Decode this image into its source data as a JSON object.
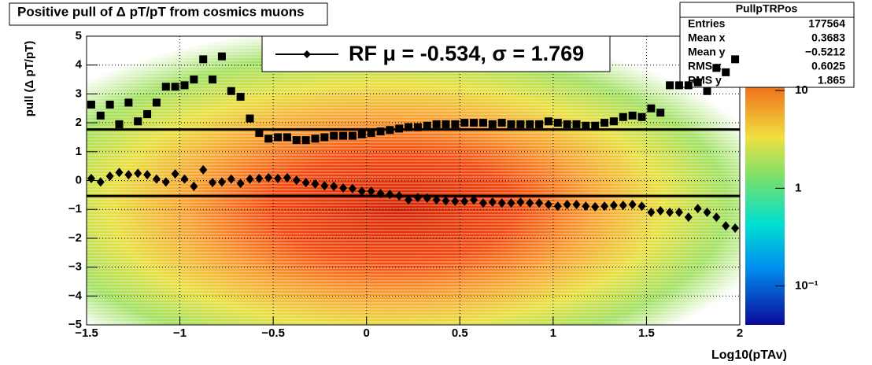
{
  "chart_data": {
    "type": "scatter",
    "title": "Positive pull of Δ pT/pT from cosmics muons",
    "x_label": "Log10(pTAv)",
    "y_label": "pull (Δ pT/pT)",
    "xlim": [
      -1.5,
      2
    ],
    "ylim": [
      -5,
      5
    ],
    "xticks": [
      {
        "value": -1.5,
        "label": "−1.5"
      },
      {
        "value": -1,
        "label": "−1"
      },
      {
        "value": -0.5,
        "label": "−0.5"
      },
      0,
      0.5,
      1,
      1.5,
      2
    ],
    "yticks": [
      {
        "value": -5,
        "label": "−5"
      },
      {
        "value": -4,
        "label": "−4"
      },
      {
        "value": -3,
        "label": "−3"
      },
      {
        "value": -2,
        "label": "−2"
      },
      {
        "value": -1,
        "label": "−1"
      },
      0,
      1,
      2,
      3,
      4,
      5
    ],
    "grid": true,
    "zlim": [
      0.04,
      36
    ],
    "zticks": [
      {
        "value": 0.1,
        "label": "10⁻¹"
      },
      1,
      10
    ],
    "log_z": true,
    "fit": {
      "legend": "RF μ = -0.534, σ =   1.769",
      "mean": -0.534,
      "sigma": 1.769
    },
    "stats": {
      "title": "PullpTRPos",
      "rows": [
        [
          "Entries",
          "177564"
        ],
        [
          "Mean x",
          "0.3683"
        ],
        [
          "Mean y",
          "−0.5212"
        ],
        [
          "RMS x",
          "0.6025"
        ],
        [
          "RMS y",
          "1.865"
        ]
      ]
    },
    "x": [
      -1.475,
      -1.425,
      -1.375,
      -1.325,
      -1.275,
      -1.225,
      -1.175,
      -1.125,
      -1.075,
      -1.025,
      -0.975,
      -0.925,
      -0.875,
      -0.825,
      -0.775,
      -0.725,
      -0.675,
      -0.625,
      -0.575,
      -0.525,
      -0.475,
      -0.425,
      -0.375,
      -0.325,
      -0.275,
      -0.225,
      -0.175,
      -0.125,
      -0.075,
      -0.025,
      0.025,
      0.075,
      0.125,
      0.175,
      0.225,
      0.275,
      0.325,
      0.375,
      0.425,
      0.475,
      0.525,
      0.575,
      0.625,
      0.675,
      0.725,
      0.775,
      0.825,
      0.875,
      0.925,
      0.975,
      1.025,
      1.075,
      1.125,
      1.175,
      1.225,
      1.275,
      1.325,
      1.375,
      1.425,
      1.475,
      1.525,
      1.575,
      1.625,
      1.675,
      1.725,
      1.775,
      1.825,
      1.875,
      1.925,
      1.975
    ],
    "series": [
      {
        "marker": "square",
        "color": "#000000",
        "values": [
          2.63,
          2.25,
          2.63,
          1.95,
          2.7,
          2.05,
          2.3,
          2.7,
          3.25,
          3.25,
          3.3,
          3.5,
          4.2,
          3.5,
          4.3,
          3.1,
          2.9,
          2.15,
          1.65,
          1.45,
          1.5,
          1.5,
          1.4,
          1.4,
          1.45,
          1.5,
          1.55,
          1.55,
          1.55,
          1.6,
          1.65,
          1.7,
          1.75,
          1.8,
          1.85,
          1.85,
          1.9,
          1.95,
          1.95,
          1.95,
          2.0,
          2.0,
          2.0,
          1.95,
          2.0,
          1.95,
          1.95,
          1.95,
          1.95,
          2.05,
          2.0,
          1.95,
          1.95,
          1.9,
          1.9,
          2.0,
          2.05,
          2.2,
          2.25,
          2.2,
          2.5,
          2.35,
          3.3,
          3.3,
          3.3,
          3.4,
          3.1,
          3.9,
          3.75,
          4.2
        ]
      },
      {
        "marker": "diamond",
        "color": "#000000",
        "values": [
          0.07,
          -0.05,
          0.15,
          0.28,
          0.2,
          0.25,
          0.2,
          0.05,
          -0.05,
          0.23,
          0.05,
          -0.2,
          0.37,
          -0.07,
          -0.05,
          0.05,
          -0.1,
          0.05,
          0.07,
          0.1,
          0.07,
          0.1,
          0.01,
          -0.07,
          -0.12,
          -0.18,
          -0.2,
          -0.26,
          -0.28,
          -0.37,
          -0.37,
          -0.45,
          -0.48,
          -0.53,
          -0.67,
          -0.59,
          -0.61,
          -0.67,
          -0.7,
          -0.72,
          -0.72,
          -0.67,
          -0.78,
          -0.75,
          -0.78,
          -0.78,
          -0.75,
          -0.78,
          -0.78,
          -0.83,
          -0.89,
          -0.83,
          -0.83,
          -0.89,
          -0.91,
          -0.89,
          -0.86,
          -0.86,
          -0.83,
          -0.89,
          -1.1,
          -1.05,
          -1.1,
          -1.1,
          -1.27,
          -0.97,
          -1.1,
          -1.27,
          -1.57,
          -1.65
        ]
      }
    ]
  }
}
